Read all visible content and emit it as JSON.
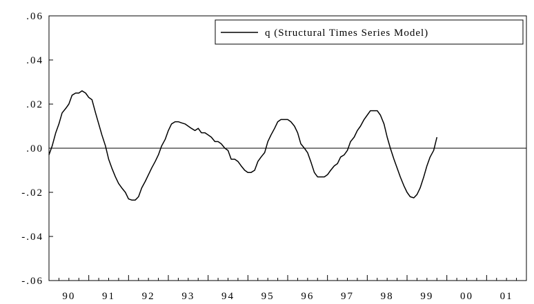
{
  "chart_data": {
    "type": "line",
    "xlim": [
      1989.5,
      2001.5
    ],
    "ylim": [
      -0.06,
      0.06
    ],
    "x_ticks": [
      {
        "value": 1990,
        "label": "90"
      },
      {
        "value": 1991,
        "label": "91"
      },
      {
        "value": 1992,
        "label": "92"
      },
      {
        "value": 1993,
        "label": "93"
      },
      {
        "value": 1994,
        "label": "94"
      },
      {
        "value": 1995,
        "label": "95"
      },
      {
        "value": 1996,
        "label": "96"
      },
      {
        "value": 1997,
        "label": "97"
      },
      {
        "value": 1998,
        "label": "98"
      },
      {
        "value": 1999,
        "label": "99"
      },
      {
        "value": 2000,
        "label": "00"
      },
      {
        "value": 2001,
        "label": "01"
      }
    ],
    "y_ticks": [
      {
        "value": 0.06,
        "label": ".06"
      },
      {
        "value": 0.04,
        "label": ".04"
      },
      {
        "value": 0.02,
        "label": ".02"
      },
      {
        "value": 0.0,
        "label": ".00"
      },
      {
        "value": -0.02,
        "label": "-.02"
      },
      {
        "value": -0.04,
        "label": "-.04"
      },
      {
        "value": -0.06,
        "label": "-.06"
      }
    ],
    "zero_line": true,
    "grid": false,
    "legend_position": "top-right",
    "series": [
      {
        "name": "q (Structural Times Series Model)",
        "color": "#000000",
        "points": [
          [
            1989.5,
            -0.003
          ],
          [
            1989.58,
            0.001
          ],
          [
            1989.67,
            0.007
          ],
          [
            1989.75,
            0.011
          ],
          [
            1989.83,
            0.016
          ],
          [
            1989.92,
            0.018
          ],
          [
            1990.0,
            0.02
          ],
          [
            1990.08,
            0.024
          ],
          [
            1990.17,
            0.025
          ],
          [
            1990.25,
            0.025
          ],
          [
            1990.33,
            0.026
          ],
          [
            1990.42,
            0.025
          ],
          [
            1990.5,
            0.023
          ],
          [
            1990.58,
            0.022
          ],
          [
            1990.67,
            0.016
          ],
          [
            1990.75,
            0.011
          ],
          [
            1990.83,
            0.006
          ],
          [
            1990.92,
            0.001
          ],
          [
            1991.0,
            -0.005
          ],
          [
            1991.08,
            -0.009
          ],
          [
            1991.17,
            -0.013
          ],
          [
            1991.25,
            -0.016
          ],
          [
            1991.33,
            -0.018
          ],
          [
            1991.42,
            -0.02
          ],
          [
            1991.5,
            -0.023
          ],
          [
            1991.58,
            -0.0235
          ],
          [
            1991.67,
            -0.0235
          ],
          [
            1991.75,
            -0.022
          ],
          [
            1991.83,
            -0.018
          ],
          [
            1991.92,
            -0.015
          ],
          [
            1992.0,
            -0.012
          ],
          [
            1992.08,
            -0.009
          ],
          [
            1992.17,
            -0.006
          ],
          [
            1992.25,
            -0.003
          ],
          [
            1992.33,
            0.001
          ],
          [
            1992.42,
            0.004
          ],
          [
            1992.5,
            0.008
          ],
          [
            1992.58,
            0.011
          ],
          [
            1992.67,
            0.012
          ],
          [
            1992.75,
            0.012
          ],
          [
            1992.83,
            0.0115
          ],
          [
            1992.92,
            0.011
          ],
          [
            1993.0,
            0.01
          ],
          [
            1993.08,
            0.009
          ],
          [
            1993.17,
            0.008
          ],
          [
            1993.25,
            0.009
          ],
          [
            1993.33,
            0.007
          ],
          [
            1993.42,
            0.007
          ],
          [
            1993.5,
            0.006
          ],
          [
            1993.58,
            0.005
          ],
          [
            1993.67,
            0.003
          ],
          [
            1993.75,
            0.003
          ],
          [
            1993.83,
            0.002
          ],
          [
            1993.92,
            0.0
          ],
          [
            1994.0,
            -0.001
          ],
          [
            1994.08,
            -0.005
          ],
          [
            1994.17,
            -0.005
          ],
          [
            1994.25,
            -0.006
          ],
          [
            1994.33,
            -0.008
          ],
          [
            1994.42,
            -0.01
          ],
          [
            1994.5,
            -0.011
          ],
          [
            1994.58,
            -0.011
          ],
          [
            1994.67,
            -0.01
          ],
          [
            1994.75,
            -0.006
          ],
          [
            1994.83,
            -0.004
          ],
          [
            1994.92,
            -0.002
          ],
          [
            1995.0,
            0.003
          ],
          [
            1995.08,
            0.006
          ],
          [
            1995.17,
            0.009
          ],
          [
            1995.25,
            0.012
          ],
          [
            1995.33,
            0.013
          ],
          [
            1995.42,
            0.013
          ],
          [
            1995.5,
            0.013
          ],
          [
            1995.58,
            0.012
          ],
          [
            1995.67,
            0.01
          ],
          [
            1995.75,
            0.007
          ],
          [
            1995.83,
            0.002
          ],
          [
            1995.92,
            0.0
          ],
          [
            1996.0,
            -0.002
          ],
          [
            1996.08,
            -0.006
          ],
          [
            1996.17,
            -0.011
          ],
          [
            1996.25,
            -0.013
          ],
          [
            1996.33,
            -0.013
          ],
          [
            1996.42,
            -0.013
          ],
          [
            1996.5,
            -0.012
          ],
          [
            1996.58,
            -0.01
          ],
          [
            1996.67,
            -0.008
          ],
          [
            1996.75,
            -0.007
          ],
          [
            1996.83,
            -0.004
          ],
          [
            1996.92,
            -0.003
          ],
          [
            1997.0,
            -0.001
          ],
          [
            1997.08,
            0.003
          ],
          [
            1997.17,
            0.005
          ],
          [
            1997.25,
            0.008
          ],
          [
            1997.33,
            0.01
          ],
          [
            1997.42,
            0.013
          ],
          [
            1997.5,
            0.015
          ],
          [
            1997.58,
            0.017
          ],
          [
            1997.67,
            0.017
          ],
          [
            1997.75,
            0.017
          ],
          [
            1997.83,
            0.015
          ],
          [
            1997.92,
            0.011
          ],
          [
            1998.0,
            0.005
          ],
          [
            1998.08,
            0.0
          ],
          [
            1998.17,
            -0.005
          ],
          [
            1998.25,
            -0.009
          ],
          [
            1998.33,
            -0.013
          ],
          [
            1998.42,
            -0.017
          ],
          [
            1998.5,
            -0.02
          ],
          [
            1998.58,
            -0.022
          ],
          [
            1998.67,
            -0.0225
          ],
          [
            1998.75,
            -0.021
          ],
          [
            1998.83,
            -0.018
          ],
          [
            1998.92,
            -0.013
          ],
          [
            1999.0,
            -0.008
          ],
          [
            1999.08,
            -0.004
          ],
          [
            1999.17,
            -0.001
          ],
          [
            1999.25,
            0.005
          ]
        ]
      }
    ]
  }
}
